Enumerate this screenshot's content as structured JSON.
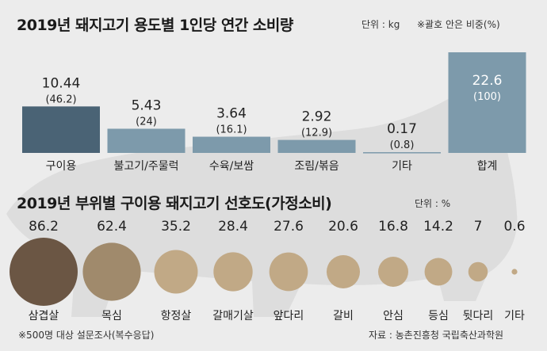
{
  "colors": {
    "background": "#ececec",
    "bar_main": "#4a6375",
    "bar_other": "#7d9aab",
    "bar_total": "#7d9aab",
    "circle_first": "#6b5644",
    "circle_mid": "#a08a6c",
    "circle_light": "#c1a986",
    "pig_silhouette": "#dcdcdc"
  },
  "header1": {
    "title": "2019년 돼지고기 용도별 1인당 연간 소비량",
    "unit": "단위 : kg",
    "note": "※괄호 안은 비중(%)"
  },
  "header2": {
    "title": "2019년 부위별 구이용 돼지고기 선호도(가정소비)",
    "unit": "단위 : %"
  },
  "footer": {
    "note": "※500명 대상 설문조사(복수응답)",
    "source": "자료 : 농촌진흥청 국립축산과학원"
  },
  "chart_data": [
    {
      "type": "bar",
      "title": "2019년 돼지고기 용도별 1인당 연간 소비량",
      "unit": "kg",
      "categories": [
        "구이용",
        "불고기/주물럭",
        "수육/보쌈",
        "조림/볶음",
        "기타",
        "합계"
      ],
      "values": [
        10.44,
        5.43,
        3.64,
        2.92,
        0.17,
        22.6
      ],
      "value_labels": [
        "10.44",
        "5.43",
        "3.64",
        "2.92",
        "0.17",
        "22.6"
      ],
      "share_labels": [
        "(46.2)",
        "(24)",
        "(16.1)",
        "(12.9)",
        "(0.8)",
        "(100)"
      ],
      "share_percent": [
        46.2,
        24,
        16.1,
        12.9,
        0.8,
        100
      ]
    },
    {
      "type": "bubble",
      "title": "2019년 부위별 구이용 돼지고기 선호도(가정소비)",
      "unit": "%",
      "categories": [
        "삼겹살",
        "목심",
        "항정살",
        "갈매기살",
        "앞다리",
        "갈비",
        "안심",
        "등심",
        "뒷다리",
        "기타"
      ],
      "values": [
        86.2,
        62.4,
        35.2,
        28.4,
        27.6,
        20.6,
        16.8,
        14.2,
        7,
        0.6
      ],
      "value_labels": [
        "86.2",
        "62.4",
        "35.2",
        "28.4",
        "27.6",
        "20.6",
        "16.8",
        "14.2",
        "7",
        "0.6"
      ]
    }
  ]
}
